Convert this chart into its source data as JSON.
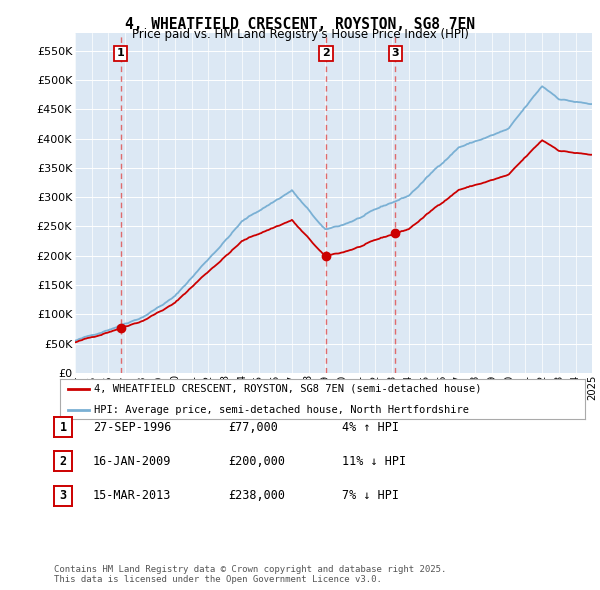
{
  "title": "4, WHEATFIELD CRESCENT, ROYSTON, SG8 7EN",
  "subtitle": "Price paid vs. HM Land Registry's House Price Index (HPI)",
  "ylim": [
    0,
    580000
  ],
  "yticks": [
    0,
    50000,
    100000,
    150000,
    200000,
    250000,
    300000,
    350000,
    400000,
    450000,
    500000,
    550000
  ],
  "ytick_labels": [
    "£0",
    "£50K",
    "£100K",
    "£150K",
    "£200K",
    "£250K",
    "£300K",
    "£350K",
    "£400K",
    "£450K",
    "£500K",
    "£550K"
  ],
  "x_start_year": 1994,
  "x_end_year": 2025,
  "transaction_color": "#cc0000",
  "hpi_line_color": "#7ab0d4",
  "vline_color": "#e05555",
  "annotation_box_color": "#cc0000",
  "plot_bg_color": "#dce8f4",
  "grid_color": "#ffffff",
  "legend_line1": "4, WHEATFIELD CRESCENT, ROYSTON, SG8 7EN (semi-detached house)",
  "legend_line2": "HPI: Average price, semi-detached house, North Hertfordshire",
  "transactions": [
    {
      "date_num": 1996.74,
      "price": 77000,
      "label": "1"
    },
    {
      "date_num": 2009.04,
      "price": 200000,
      "label": "2"
    },
    {
      "date_num": 2013.21,
      "price": 238000,
      "label": "3"
    }
  ],
  "table_rows": [
    {
      "label": "1",
      "date": "27-SEP-1996",
      "price": "£77,000",
      "pct_hpi": "4% ↑ HPI"
    },
    {
      "label": "2",
      "date": "16-JAN-2009",
      "price": "£200,000",
      "pct_hpi": "11% ↓ HPI"
    },
    {
      "label": "3",
      "date": "15-MAR-2013",
      "price": "£238,000",
      "pct_hpi": "7% ↓ HPI"
    }
  ],
  "footer": "Contains HM Land Registry data © Crown copyright and database right 2025.\nThis data is licensed under the Open Government Licence v3.0."
}
